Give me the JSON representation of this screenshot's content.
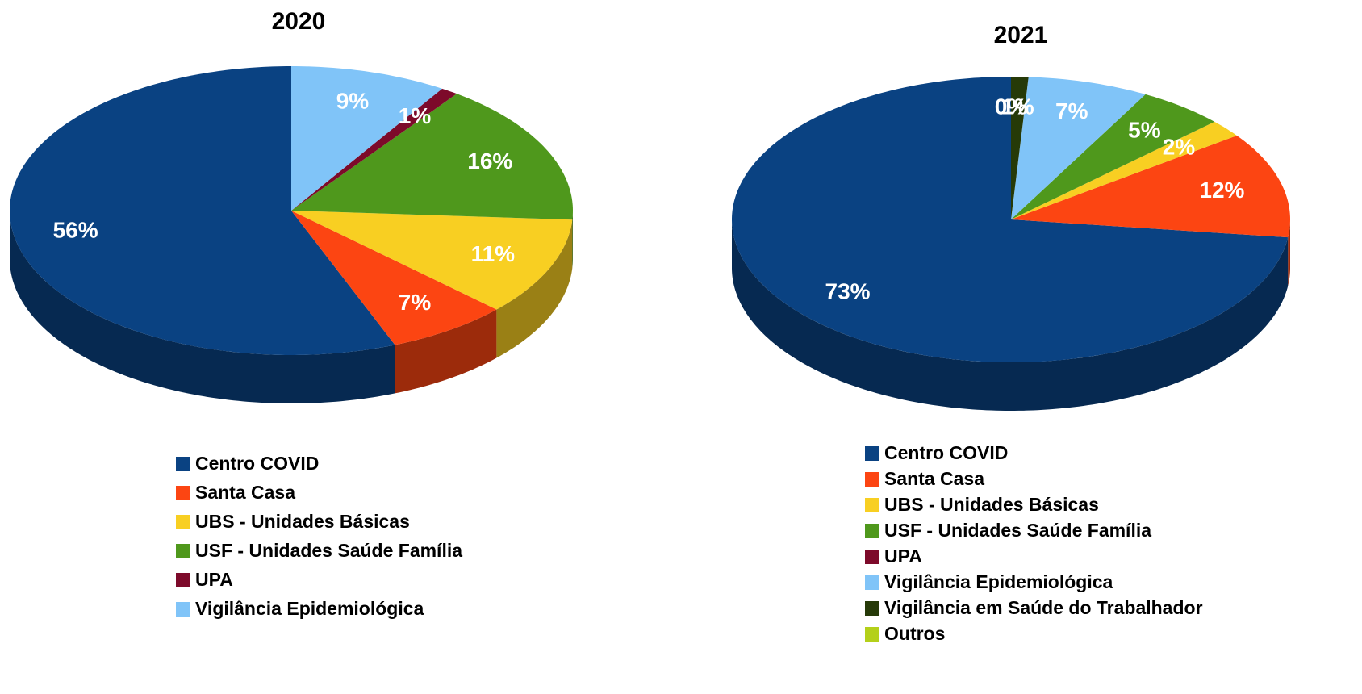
{
  "chart_data": [
    {
      "type": "pie",
      "title": "2020",
      "categories": [
        "Centro COVID",
        "Santa Casa",
        "UBS - Unidades Básicas",
        "USF - Unidades Saúde Família",
        "UPA",
        "Vigilância Epidemiológica"
      ],
      "values": [
        56,
        7,
        11,
        16,
        1,
        9
      ],
      "value_labels": [
        "56%",
        "7%",
        "11%",
        "16%",
        "1%",
        "9%"
      ],
      "colors": [
        "#0a4282",
        "#fc4512",
        "#f8cf22",
        "#4f981c",
        "#7d0a2a",
        "#80c4f8"
      ]
    },
    {
      "type": "pie",
      "title": "2021",
      "categories": [
        "Centro COVID",
        "Santa Casa",
        "UBS - Unidades Básicas",
        "USF - Unidades Saúde Família",
        "UPA",
        "Vigilância Epidemiológica",
        "Vigilância em Saúde do Trabalhador",
        "Outros"
      ],
      "values": [
        73,
        12,
        2,
        5,
        null,
        7,
        1,
        0
      ],
      "value_labels": [
        "73%",
        "12%",
        "2%",
        "5%",
        null,
        "7%",
        "1%",
        "0%"
      ],
      "colors": [
        "#0a4282",
        "#fc4512",
        "#f8cf22",
        "#4f981c",
        "#7d0a2a",
        "#80c4f8",
        "#263a08",
        "#b4d01a"
      ]
    }
  ]
}
